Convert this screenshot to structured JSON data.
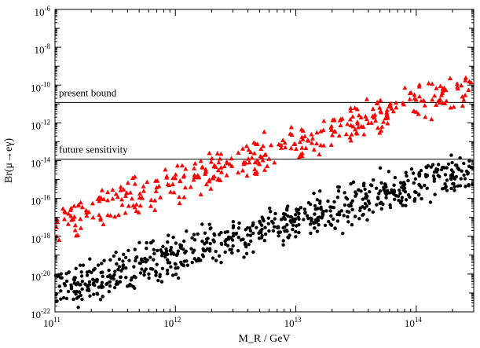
{
  "chart_data": {
    "type": "scatter",
    "title": "",
    "xlabel": "M_R / GeV",
    "ylabel": "Br(μ→eγ)",
    "x_scale": "log",
    "y_scale": "log",
    "xlim": [
      100000000000.0,
      300000000000000.0
    ],
    "ylim": [
      1e-22,
      1e-06
    ],
    "x_tick_labels": [
      {
        "value": 100000000000.0,
        "base": "10",
        "exp": "11"
      },
      {
        "value": 1000000000000.0,
        "base": "10",
        "exp": "12"
      },
      {
        "value": 10000000000000.0,
        "base": "10",
        "exp": "13"
      },
      {
        "value": 100000000000000.0,
        "base": "10",
        "exp": "14"
      }
    ],
    "y_tick_labels": [
      {
        "value": 1e-22,
        "base": "10",
        "exp": "-22"
      },
      {
        "value": 1e-20,
        "base": "10",
        "exp": "-20"
      },
      {
        "value": 1e-18,
        "base": "10",
        "exp": "-18"
      },
      {
        "value": 1e-16,
        "base": "10",
        "exp": "-16"
      },
      {
        "value": 1e-14,
        "base": "10",
        "exp": "-14"
      },
      {
        "value": 1e-12,
        "base": "10",
        "exp": "-12"
      },
      {
        "value": 1e-10,
        "base": "10",
        "exp": "-10"
      },
      {
        "value": 1e-08,
        "base": "10",
        "exp": "-8"
      },
      {
        "value": 1e-06,
        "base": "10",
        "exp": "-6"
      }
    ],
    "reference_lines": [
      {
        "name": "present-bound",
        "label": "present bound",
        "y": 1.2e-11
      },
      {
        "name": "future-sensitivity",
        "label": "future sensitivity",
        "y": 1.2e-14
      }
    ],
    "series": [
      {
        "name": "upper-band",
        "color": "#ff0000",
        "marker": "triangle",
        "trend": {
          "log_y_at_1e11": -17.3,
          "log_y_at_3e14": -10.0
        },
        "scatter_half_width_decades": 1.0,
        "points_shown": 380
      },
      {
        "name": "lower-band",
        "color": "#000000",
        "marker": "circle",
        "trend": {
          "log_y_at_1e11": -20.9,
          "log_y_at_3e14": -14.4
        },
        "scatter_half_width_decades": 1.1,
        "points_shown": 680
      }
    ]
  }
}
